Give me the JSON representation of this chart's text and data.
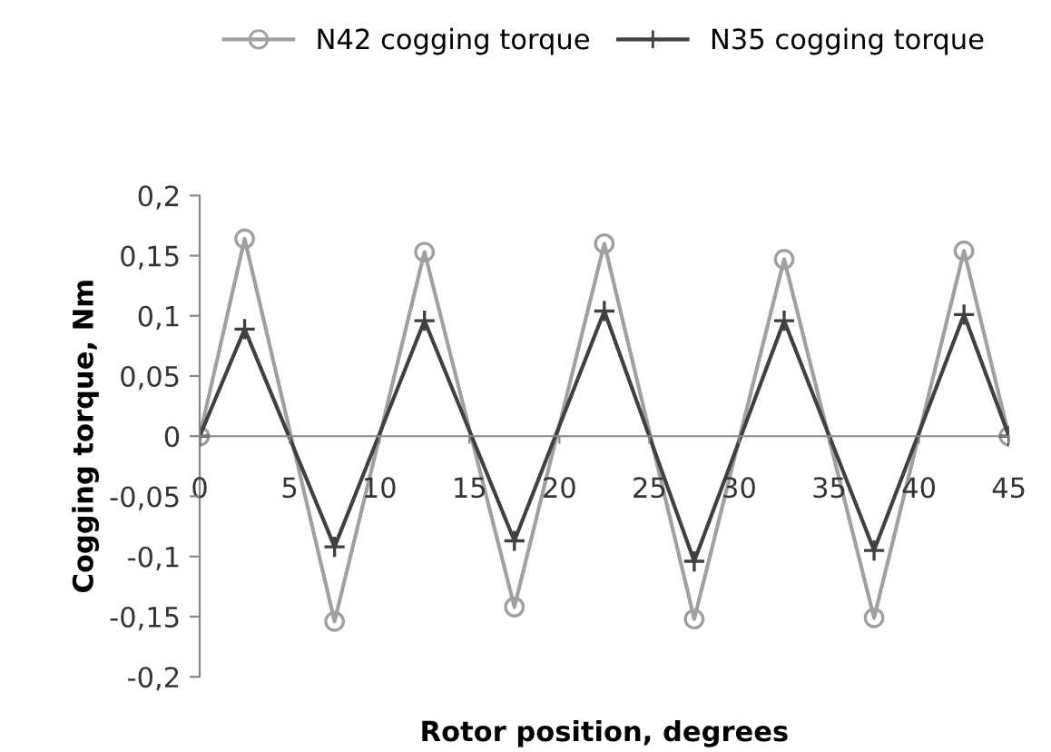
{
  "chart_data": {
    "type": "line",
    "xlabel": "Rotor position, degrees",
    "ylabel": "Cogging torque, Nm",
    "x": [
      0,
      2.5,
      7.5,
      12.5,
      17.5,
      22.5,
      27.5,
      32.5,
      37.5,
      42.5,
      45
    ],
    "series": [
      {
        "name": "N42 cogging torque",
        "color": "#a0a0a0",
        "marker": "circle",
        "values": [
          0,
          0.164,
          -0.154,
          0.153,
          -0.142,
          0.16,
          -0.152,
          0.147,
          -0.151,
          0.154,
          0
        ]
      },
      {
        "name": "N35 cogging torque",
        "color": "#404040",
        "marker": "cross",
        "values": [
          0,
          0.089,
          -0.092,
          0.096,
          -0.087,
          0.104,
          -0.104,
          0.096,
          -0.095,
          0.101,
          0
        ]
      }
    ],
    "xlim": [
      0,
      45
    ],
    "ylim": [
      -0.2,
      0.2
    ],
    "xticks": [
      0,
      5,
      10,
      15,
      20,
      25,
      30,
      35,
      40,
      45
    ],
    "yticks": [
      {
        "value": -0.2,
        "label": "-0,2"
      },
      {
        "value": -0.15,
        "label": "-0,15"
      },
      {
        "value": -0.1,
        "label": "-0,1"
      },
      {
        "value": -0.05,
        "label": "-0,05"
      },
      0,
      {
        "value": 0.05,
        "label": "0,05"
      },
      {
        "value": 0.1,
        "label": "0,1"
      },
      {
        "value": 0.15,
        "label": "0,15"
      },
      {
        "value": 0.2,
        "label": "0,2"
      }
    ],
    "grid": false,
    "legend": "top",
    "line_style": "solid"
  }
}
